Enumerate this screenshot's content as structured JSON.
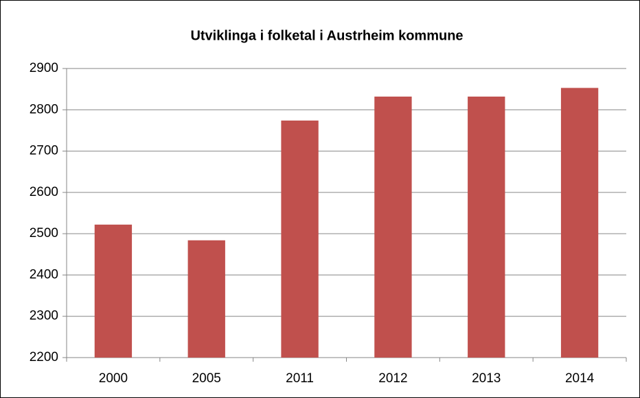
{
  "chart_data": {
    "type": "bar",
    "title": "Utviklinga i folketal i Austrheim kommune",
    "categories": [
      "2000",
      "2005",
      "2011",
      "2012",
      "2013",
      "2014"
    ],
    "values": [
      2522,
      2484,
      2774,
      2832,
      2832,
      2853
    ],
    "color": "#c0504d",
    "ylim": [
      2200,
      2900
    ],
    "yticks": [
      2200,
      2300,
      2400,
      2500,
      2600,
      2700,
      2800,
      2900
    ],
    "grid": true
  }
}
